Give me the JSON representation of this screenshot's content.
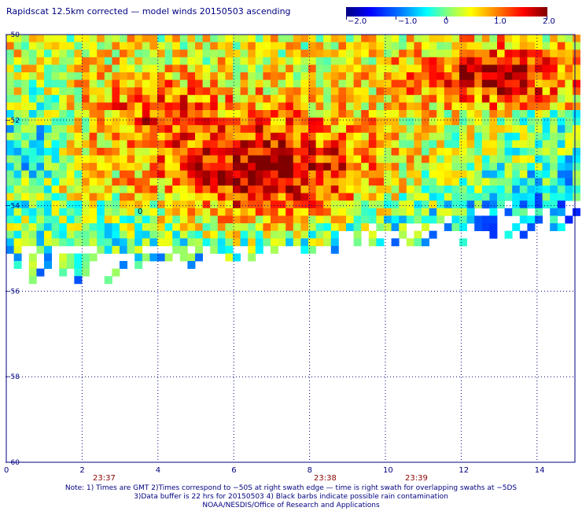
{
  "title": "Rapidscat 12.5km corrected — model winds 20150503 ascending",
  "colorbar": {
    "labels": [
      "−2.0",
      "−1.0",
      "0",
      "1.0",
      "2.0"
    ],
    "min": -2.0,
    "max": 2.0
  },
  "map": {
    "x_ticks": [
      "0",
      "2",
      "4",
      "6",
      "8",
      "10",
      "12",
      "14"
    ],
    "y_ticks": [
      "−50",
      "−52",
      "−54",
      "−56",
      "−58",
      "−60"
    ],
    "time_labels": [
      "23:37",
      "23:38",
      "23:39"
    ],
    "contour_label": "0"
  },
  "notes": {
    "line1": "Note: 1) Times are GMT 2)Times correspond to −50S at right swath edge — time is right swath for overlapping swaths at −5DS",
    "line2": "3)Data buffer is 22 hrs for 20150503 4) Black barbs indicate possible rain contamination",
    "line3": "NOAA/NESDIS/Office of Research and Applications"
  }
}
